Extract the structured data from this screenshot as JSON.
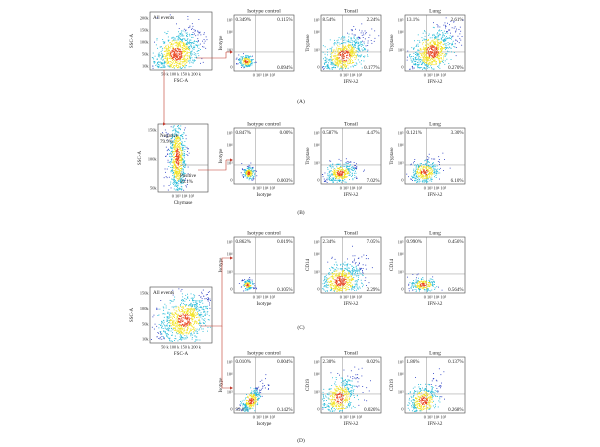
{
  "rows": [
    {
      "id": "A",
      "caption": "(A)",
      "gate_plot": {
        "inset": "All events",
        "ylabel": "SSC-A",
        "xlabel": "FSC-A",
        "yticks": [
          "200k",
          "150k",
          "100k",
          "50k",
          "10k"
        ],
        "xticks": "50 k 100 k 150 k 200 k"
      },
      "plots": [
        {
          "title": "Isotype control",
          "ylabel": "Isotype",
          "xlabel": "",
          "q": [
            "0.349%",
            "0.115%",
            "",
            "0.094%"
          ]
        },
        {
          "title": "Tonsil",
          "ylabel": "Tryptase",
          "xlabel": "IFN-λ2",
          "q": [
            "8.54%",
            "2.24%",
            "",
            "0.177%"
          ]
        },
        {
          "title": "Lung",
          "ylabel": "Tryptase",
          "xlabel": "IFN-λ2",
          "q": [
            "13.1%",
            "2.61%",
            "",
            "0.270%"
          ]
        }
      ]
    },
    {
      "id": "B",
      "caption": "(B)",
      "gate_plot": {
        "ylabel": "SSC-A",
        "xlabel": "Chymase",
        "yticks": [
          "150k",
          "100k",
          "50k"
        ],
        "xticks": "0 10³ 10⁴ 10⁵",
        "gate_neg": "Negative",
        "gate_neg_pct": "79.9%",
        "gate_pos": "Positive",
        "gate_pos_pct": "20.1%"
      },
      "plots": [
        {
          "title": "Isotype control",
          "ylabel": "Isotype",
          "xlabel": "Isotype",
          "q": [
            "0.847%",
            "0.00%",
            "",
            "0.003%"
          ]
        },
        {
          "title": "Tonsil",
          "ylabel": "Tryptase",
          "xlabel": "IFN-λ2",
          "q": [
            "0.587%",
            "4.47%",
            "",
            "7.02%"
          ]
        },
        {
          "title": "Lung",
          "ylabel": "Tryptase",
          "xlabel": "IFN-λ2",
          "q": [
            "0.121%",
            "3.30%",
            "",
            "6.10%"
          ]
        }
      ]
    },
    {
      "id": "C",
      "caption": "(C)",
      "plots": [
        {
          "title": "Isotype control",
          "ylabel": "Isotype",
          "xlabel": "Isotype",
          "q": [
            "0.862%",
            "0.019%",
            "",
            "0.105%"
          ]
        },
        {
          "title": "Tonsil",
          "ylabel": "CD14",
          "xlabel": "IFN-λ2",
          "q": [
            "2.34%",
            "7.05%",
            "",
            "2.29%"
          ]
        },
        {
          "title": "Lung",
          "ylabel": "CD14",
          "xlabel": "IFN-λ2",
          "q": [
            "0.990%",
            "0.456%",
            "",
            "0.564%"
          ]
        }
      ]
    },
    {
      "id": "D",
      "caption": "(D)",
      "plots": [
        {
          "title": "Isotype control",
          "ylabel": "Isotype",
          "xlabel": "Isotype",
          "q": [
            "0.010%",
            "0.004%",
            "99.8%",
            "0.142%"
          ]
        },
        {
          "title": "Tonsil",
          "ylabel": "CD19",
          "xlabel": "IFN-λ2",
          "q": [
            "2.30%",
            "0.02%",
            "",
            "0.026%"
          ]
        },
        {
          "title": "Lung",
          "ylabel": "CD19",
          "xlabel": "IFN-λ2",
          "q": [
            "1.86%",
            "0.137%",
            "",
            "0.268%"
          ]
        }
      ]
    }
  ],
  "cd_gate_plot": {
    "inset": "All events",
    "ylabel": "SSC-A",
    "xlabel": "FSC-A",
    "yticks": [
      "150k",
      "100k",
      "50k",
      "10k"
    ],
    "xticks": "50 k 100 k 150 k 200 k"
  },
  "quadrant_ticks": {
    "y": [
      "10⁵",
      "10⁴",
      "10³",
      "0"
    ],
    "x": "0 10³ 10⁴ 10⁵"
  },
  "colors": {
    "density_low": "#2b3fc2",
    "density_mid": "#1fb8d6",
    "density_high": "#f2e21a",
    "density_peak": "#e8401c",
    "gate_arrow": "#c0392b",
    "axis": "#444444"
  }
}
